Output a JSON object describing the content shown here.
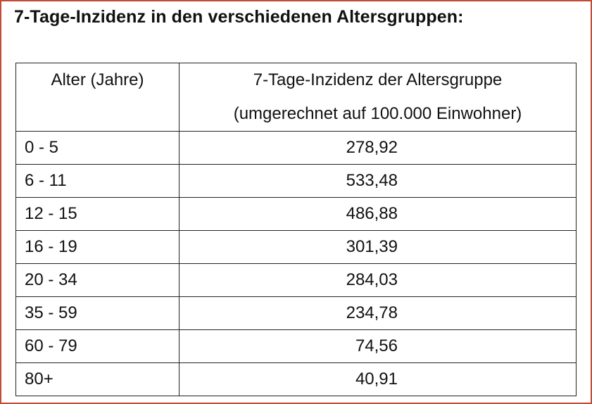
{
  "title": "7-Tage-Inzidenz in den verschiedenen Altersgruppen:",
  "table": {
    "headers": {
      "age": "Alter (Jahre)",
      "incidence_line1": "7-Tage-Inzidenz der Altersgruppe",
      "incidence_line2": "(umgerechnet auf 100.000 Einwohner)"
    },
    "rows": [
      {
        "age": "0 - 5",
        "incidence": "278,92"
      },
      {
        "age": "6 - 11",
        "incidence": "533,48"
      },
      {
        "age": "12 - 15",
        "incidence": "486,88"
      },
      {
        "age": "16 - 19",
        "incidence": "301,39"
      },
      {
        "age": "20 - 34",
        "incidence": "284,03"
      },
      {
        "age": "35 - 59",
        "incidence": "234,78"
      },
      {
        "age": "60 - 79",
        "incidence": "74,56"
      },
      {
        "age": "80+",
        "incidence": "40,91"
      }
    ]
  },
  "colors": {
    "frame_border": "#c24a36",
    "text": "#111111",
    "grid": "#222222"
  }
}
